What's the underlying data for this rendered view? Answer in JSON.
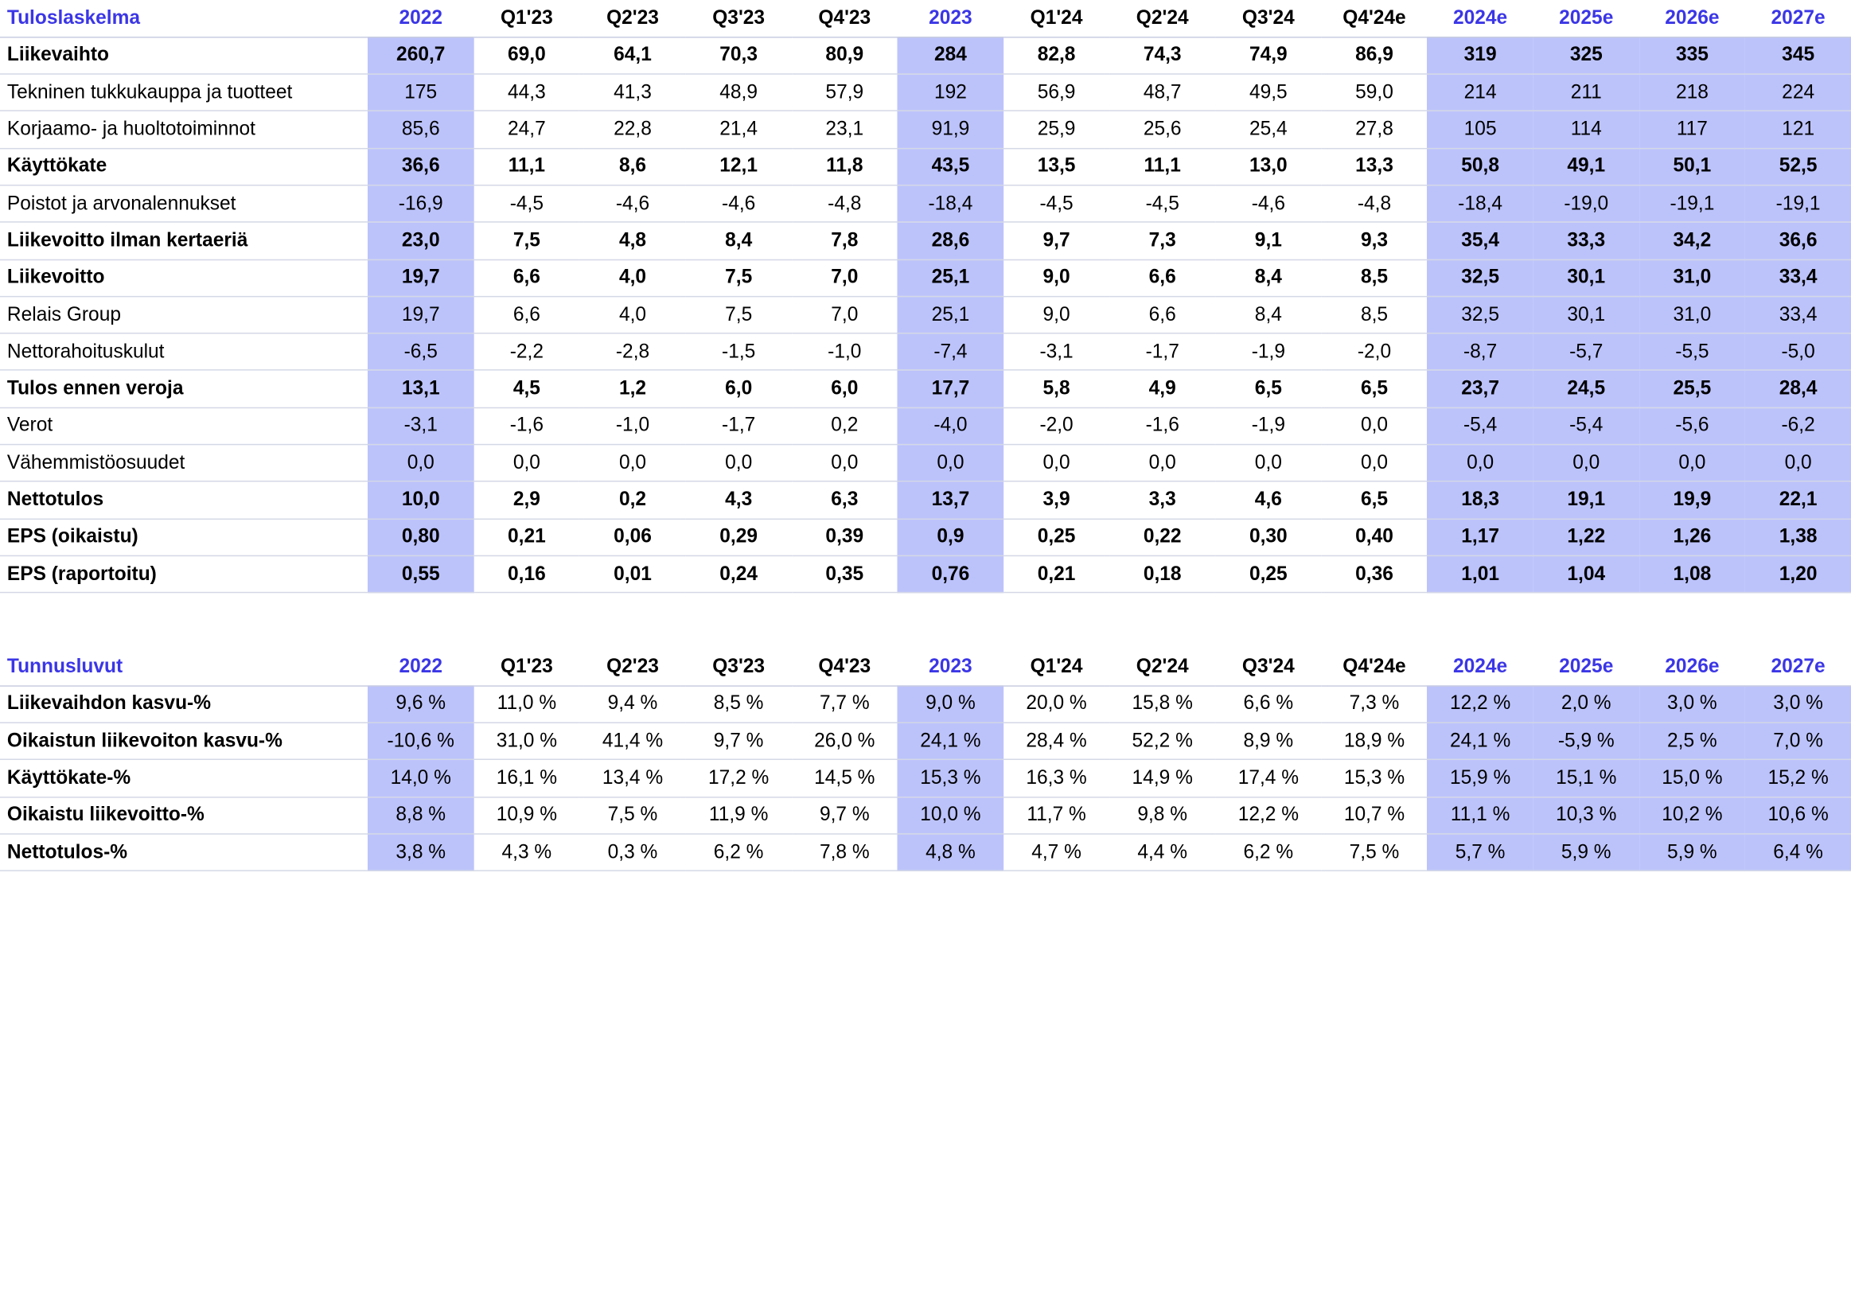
{
  "income_statement": {
    "title": "Tuloslaskelma",
    "columns": [
      {
        "label": "2022",
        "annual": true
      },
      {
        "label": "Q1'23",
        "annual": false
      },
      {
        "label": "Q2'23",
        "annual": false
      },
      {
        "label": "Q3'23",
        "annual": false
      },
      {
        "label": "Q4'23",
        "annual": false
      },
      {
        "label": "2023",
        "annual": true
      },
      {
        "label": "Q1'24",
        "annual": false
      },
      {
        "label": "Q2'24",
        "annual": false
      },
      {
        "label": "Q3'24",
        "annual": false
      },
      {
        "label": "Q4'24e",
        "annual": false
      },
      {
        "label": "2024e",
        "annual": true
      },
      {
        "label": "2025e",
        "annual": true
      },
      {
        "label": "2026e",
        "annual": true
      },
      {
        "label": "2027e",
        "annual": true
      }
    ],
    "rows": [
      {
        "label": "Liikevaihto",
        "bold": true,
        "values": [
          "260,7",
          "69,0",
          "64,1",
          "70,3",
          "80,9",
          "284",
          "82,8",
          "74,3",
          "74,9",
          "86,9",
          "319",
          "325",
          "335",
          "345"
        ]
      },
      {
        "label": "Tekninen tukkukauppa ja tuotteet",
        "bold": false,
        "values": [
          "175",
          "44,3",
          "41,3",
          "48,9",
          "57,9",
          "192",
          "56,9",
          "48,7",
          "49,5",
          "59,0",
          "214",
          "211",
          "218",
          "224"
        ]
      },
      {
        "label": "Korjaamo- ja huoltotoiminnot",
        "bold": false,
        "values": [
          "85,6",
          "24,7",
          "22,8",
          "21,4",
          "23,1",
          "91,9",
          "25,9",
          "25,6",
          "25,4",
          "27,8",
          "105",
          "114",
          "117",
          "121"
        ]
      },
      {
        "label": "Käyttökate",
        "bold": true,
        "values": [
          "36,6",
          "11,1",
          "8,6",
          "12,1",
          "11,8",
          "43,5",
          "13,5",
          "11,1",
          "13,0",
          "13,3",
          "50,8",
          "49,1",
          "50,1",
          "52,5"
        ]
      },
      {
        "label": "Poistot ja arvonalennukset",
        "bold": false,
        "values": [
          "-16,9",
          "-4,5",
          "-4,6",
          "-4,6",
          "-4,8",
          "-18,4",
          "-4,5",
          "-4,5",
          "-4,6",
          "-4,8",
          "-18,4",
          "-19,0",
          "-19,1",
          "-19,1"
        ]
      },
      {
        "label": "Liikevoitto ilman kertaeriä",
        "bold": true,
        "values": [
          "23,0",
          "7,5",
          "4,8",
          "8,4",
          "7,8",
          "28,6",
          "9,7",
          "7,3",
          "9,1",
          "9,3",
          "35,4",
          "33,3",
          "34,2",
          "36,6"
        ]
      },
      {
        "label": "Liikevoitto",
        "bold": true,
        "values": [
          "19,7",
          "6,6",
          "4,0",
          "7,5",
          "7,0",
          "25,1",
          "9,0",
          "6,6",
          "8,4",
          "8,5",
          "32,5",
          "30,1",
          "31,0",
          "33,4"
        ]
      },
      {
        "label": "Relais Group",
        "bold": false,
        "values": [
          "19,7",
          "6,6",
          "4,0",
          "7,5",
          "7,0",
          "25,1",
          "9,0",
          "6,6",
          "8,4",
          "8,5",
          "32,5",
          "30,1",
          "31,0",
          "33,4"
        ]
      },
      {
        "label": "Nettorahoituskulut",
        "bold": false,
        "values": [
          "-6,5",
          "-2,2",
          "-2,8",
          "-1,5",
          "-1,0",
          "-7,4",
          "-3,1",
          "-1,7",
          "-1,9",
          "-2,0",
          "-8,7",
          "-5,7",
          "-5,5",
          "-5,0"
        ]
      },
      {
        "label": "Tulos ennen veroja",
        "bold": true,
        "values": [
          "13,1",
          "4,5",
          "1,2",
          "6,0",
          "6,0",
          "17,7",
          "5,8",
          "4,9",
          "6,5",
          "6,5",
          "23,7",
          "24,5",
          "25,5",
          "28,4"
        ]
      },
      {
        "label": "Verot",
        "bold": false,
        "values": [
          "-3,1",
          "-1,6",
          "-1,0",
          "-1,7",
          "0,2",
          "-4,0",
          "-2,0",
          "-1,6",
          "-1,9",
          "0,0",
          "-5,4",
          "-5,4",
          "-5,6",
          "-6,2"
        ]
      },
      {
        "label": "Vähemmistöosuudet",
        "bold": false,
        "values": [
          "0,0",
          "0,0",
          "0,0",
          "0,0",
          "0,0",
          "0,0",
          "0,0",
          "0,0",
          "0,0",
          "0,0",
          "0,0",
          "0,0",
          "0,0",
          "0,0"
        ]
      },
      {
        "label": "Nettotulos",
        "bold": true,
        "values": [
          "10,0",
          "2,9",
          "0,2",
          "4,3",
          "6,3",
          "13,7",
          "3,9",
          "3,3",
          "4,6",
          "6,5",
          "18,3",
          "19,1",
          "19,9",
          "22,1"
        ]
      },
      {
        "label": "EPS (oikaistu)",
        "bold": true,
        "values": [
          "0,80",
          "0,21",
          "0,06",
          "0,29",
          "0,39",
          "0,9",
          "0,25",
          "0,22",
          "0,30",
          "0,40",
          "1,17",
          "1,22",
          "1,26",
          "1,38"
        ]
      },
      {
        "label": "EPS (raportoitu)",
        "bold": true,
        "values": [
          "0,55",
          "0,16",
          "0,01",
          "0,24",
          "0,35",
          "0,76",
          "0,21",
          "0,18",
          "0,25",
          "0,36",
          "1,01",
          "1,04",
          "1,08",
          "1,20"
        ]
      }
    ]
  },
  "key_figures": {
    "title": "Tunnusluvut",
    "columns": [
      {
        "label": "2022",
        "annual": true
      },
      {
        "label": "Q1'23",
        "annual": false
      },
      {
        "label": "Q2'23",
        "annual": false
      },
      {
        "label": "Q3'23",
        "annual": false
      },
      {
        "label": "Q4'23",
        "annual": false
      },
      {
        "label": "2023",
        "annual": true
      },
      {
        "label": "Q1'24",
        "annual": false
      },
      {
        "label": "Q2'24",
        "annual": false
      },
      {
        "label": "Q3'24",
        "annual": false
      },
      {
        "label": "Q4'24e",
        "annual": false
      },
      {
        "label": "2024e",
        "annual": true
      },
      {
        "label": "2025e",
        "annual": true
      },
      {
        "label": "2026e",
        "annual": true
      },
      {
        "label": "2027e",
        "annual": true
      }
    ],
    "rows": [
      {
        "label": "Liikevaihdon kasvu-%",
        "bold": false,
        "label_bold": true,
        "values": [
          "9,6 %",
          "11,0 %",
          "9,4 %",
          "8,5 %",
          "7,7 %",
          "9,0 %",
          "20,0 %",
          "15,8 %",
          "6,6 %",
          "7,3 %",
          "12,2 %",
          "2,0 %",
          "3,0 %",
          "3,0 %"
        ]
      },
      {
        "label": "Oikaistun liikevoiton kasvu-%",
        "bold": false,
        "label_bold": true,
        "values": [
          "-10,6 %",
          "31,0 %",
          "41,4 %",
          "9,7 %",
          "26,0 %",
          "24,1 %",
          "28,4 %",
          "52,2 %",
          "8,9 %",
          "18,9 %",
          "24,1 %",
          "-5,9 %",
          "2,5 %",
          "7,0 %"
        ]
      },
      {
        "label": "Käyttökate-%",
        "bold": false,
        "label_bold": true,
        "values": [
          "14,0 %",
          "16,1 %",
          "13,4 %",
          "17,2 %",
          "14,5 %",
          "15,3 %",
          "16,3 %",
          "14,9 %",
          "17,4 %",
          "15,3 %",
          "15,9 %",
          "15,1 %",
          "15,0 %",
          "15,2 %"
        ]
      },
      {
        "label": "Oikaistu liikevoitto-%",
        "bold": false,
        "label_bold": true,
        "values": [
          "8,8 %",
          "10,9 %",
          "7,5 %",
          "11,9 %",
          "9,7 %",
          "10,0 %",
          "11,7 %",
          "9,8 %",
          "12,2 %",
          "10,7 %",
          "11,1 %",
          "10,3 %",
          "10,2 %",
          "10,6 %"
        ]
      },
      {
        "label": "Nettotulos-%",
        "bold": false,
        "label_bold": true,
        "values": [
          "3,8 %",
          "4,3 %",
          "0,3 %",
          "6,2 %",
          "7,8 %",
          "4,8 %",
          "4,7 %",
          "4,4 %",
          "6,2 %",
          "7,5 %",
          "5,7 %",
          "5,9 %",
          "5,9 %",
          "6,4 %"
        ]
      }
    ]
  },
  "colors": {
    "heading": "#3b36e6",
    "annual_highlight": "#bcc3fb",
    "row_divider": "#d4d8e6"
  }
}
